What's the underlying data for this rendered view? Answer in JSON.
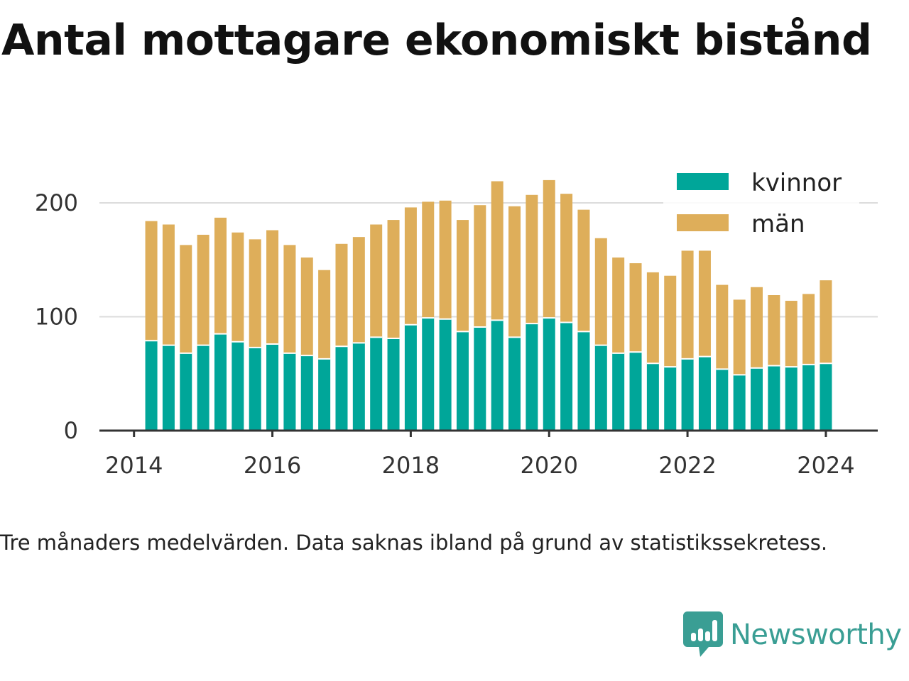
{
  "chart_data": {
    "type": "bar",
    "stacked": true,
    "title": "Antal mottagare ekonomiskt bistånd",
    "caption": "Tre månaders medelvärden. Data saknas ibland på grund av statistikssekretess.",
    "xlabel": "",
    "ylabel": "",
    "ylim": [
      0,
      220
    ],
    "yticks": [
      0,
      100,
      200
    ],
    "xticks": [
      2014,
      2016,
      2018,
      2020,
      2022,
      2024
    ],
    "xlim": [
      2013.5,
      2024.75
    ],
    "grid": true,
    "legend_position": "top-right",
    "x": [
      2014.25,
      2014.5,
      2014.75,
      2015.0,
      2015.25,
      2015.5,
      2015.75,
      2016.0,
      2016.25,
      2016.5,
      2016.75,
      2017.0,
      2017.25,
      2017.5,
      2017.75,
      2018.0,
      2018.25,
      2018.5,
      2018.75,
      2019.0,
      2019.25,
      2019.5,
      2019.75,
      2020.0,
      2020.25,
      2020.5,
      2020.75,
      2021.0,
      2021.25,
      2021.5,
      2021.75,
      2022.0,
      2022.25,
      2022.5,
      2022.75,
      2023.0,
      2023.25,
      2023.5,
      2023.75,
      2024.0
    ],
    "series": [
      {
        "name": "kvinnor",
        "color": "#00a699",
        "values": [
          79,
          75,
          68,
          75,
          85,
          78,
          73,
          76,
          68,
          66,
          63,
          74,
          77,
          82,
          81,
          93,
          99,
          98,
          87,
          91,
          97,
          82,
          94,
          99,
          95,
          87,
          75,
          68,
          69,
          59,
          56,
          63,
          65,
          54,
          49,
          55,
          57,
          56,
          58,
          59
        ]
      },
      {
        "name": "män",
        "color": "#deae5a",
        "values": [
          105,
          106,
          95,
          97,
          102,
          96,
          95,
          100,
          95,
          86,
          78,
          90,
          93,
          99,
          104,
          103,
          102,
          104,
          98,
          107,
          122,
          115,
          113,
          121,
          113,
          107,
          94,
          84,
          78,
          80,
          80,
          95,
          93,
          74,
          66,
          71,
          62,
          58,
          62,
          73
        ]
      }
    ]
  },
  "brand": {
    "name": "Newsworthy",
    "color": "#3a9e94",
    "icon": "newsworthy-logo-icon"
  }
}
